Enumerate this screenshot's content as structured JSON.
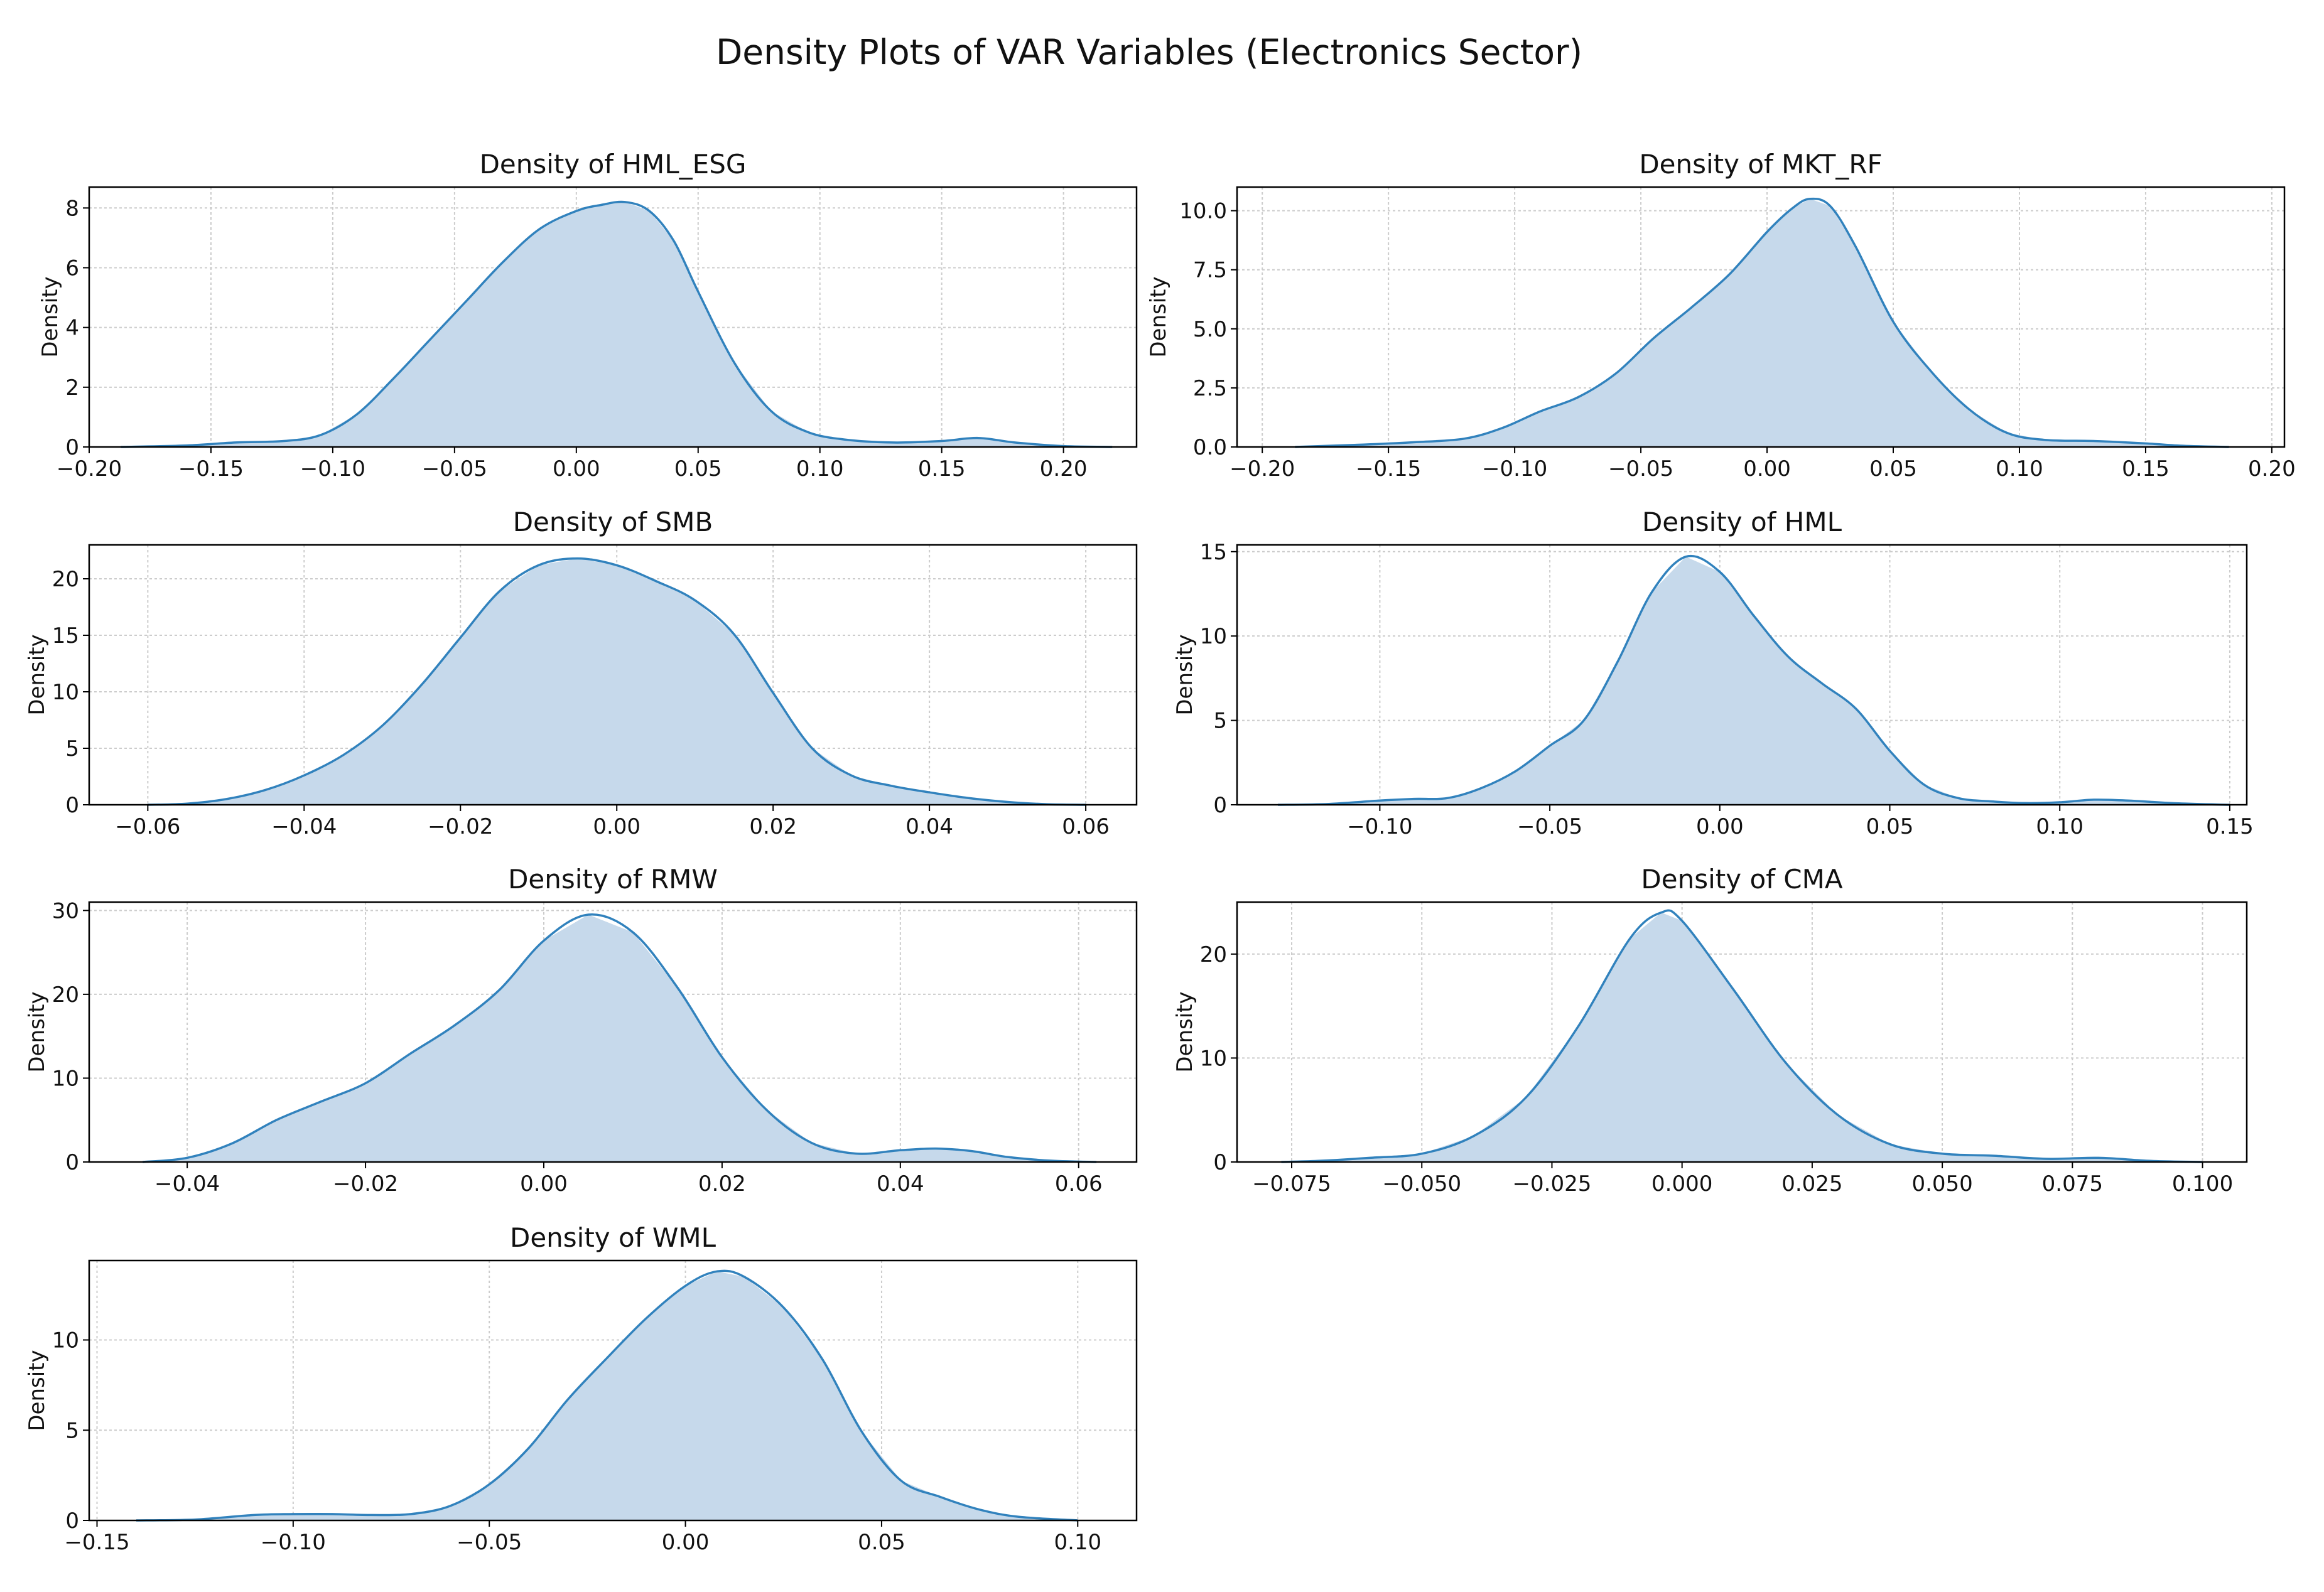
{
  "figure": {
    "title": "Density Plots of VAR Variables (Electronics Sector)"
  },
  "colors": {
    "line": "#3182bd",
    "fill": "#c6d9eb",
    "grid": "#cccccc",
    "axis": "#000000"
  },
  "chart_data": [
    {
      "type": "area",
      "title": "Density of HML_ESG",
      "xlabel": "",
      "ylabel": "Density",
      "xlim": [
        -0.2,
        0.23
      ],
      "ylim": [
        0,
        8.7
      ],
      "xticks": [
        -0.2,
        -0.15,
        -0.1,
        -0.05,
        0.0,
        0.05,
        0.1,
        0.15,
        0.2
      ],
      "xtick_labels": [
        "−0.20",
        "−0.15",
        "−0.10",
        "−0.05",
        "0.00",
        "0.05",
        "0.10",
        "0.15",
        "0.20"
      ],
      "yticks": [
        0,
        2,
        4,
        6,
        8
      ],
      "ytick_labels": [
        "0",
        "2",
        "4",
        "6",
        "8"
      ],
      "grid": true,
      "x": [
        -0.187,
        -0.16,
        -0.14,
        -0.12,
        -0.105,
        -0.09,
        -0.075,
        -0.06,
        -0.045,
        -0.03,
        -0.015,
        0.0,
        0.01,
        0.02,
        0.03,
        0.04,
        0.05,
        0.065,
        0.08,
        0.095,
        0.11,
        0.13,
        0.15,
        0.165,
        0.18,
        0.2,
        0.22
      ],
      "y": [
        0.0,
        0.05,
        0.15,
        0.2,
        0.4,
        1.1,
        2.3,
        3.6,
        4.9,
        6.2,
        7.3,
        7.9,
        8.1,
        8.2,
        7.9,
        6.9,
        5.2,
        2.8,
        1.2,
        0.5,
        0.25,
        0.15,
        0.2,
        0.3,
        0.15,
        0.03,
        0.0
      ]
    },
    {
      "type": "area",
      "title": "Density of MKT_RF",
      "xlabel": "",
      "ylabel": "Density",
      "xlim": [
        -0.21,
        0.205
      ],
      "ylim": [
        0,
        11.0
      ],
      "xticks": [
        -0.2,
        -0.15,
        -0.1,
        -0.05,
        0.0,
        0.05,
        0.1,
        0.15,
        0.2
      ],
      "xtick_labels": [
        "−0.20",
        "−0.15",
        "−0.10",
        "−0.05",
        "0.00",
        "0.05",
        "0.10",
        "0.15",
        "0.20"
      ],
      "yticks": [
        0,
        2.5,
        5,
        7.5,
        10
      ],
      "ytick_labels": [
        "0.0",
        "2.5",
        "5.0",
        "7.5",
        "10.0"
      ],
      "grid": true,
      "x": [
        -0.187,
        -0.16,
        -0.14,
        -0.12,
        -0.105,
        -0.09,
        -0.075,
        -0.06,
        -0.045,
        -0.03,
        -0.015,
        0.0,
        0.01,
        0.017,
        0.025,
        0.035,
        0.05,
        0.065,
        0.08,
        0.095,
        0.11,
        0.13,
        0.15,
        0.165,
        0.183
      ],
      "y": [
        0.0,
        0.1,
        0.2,
        0.35,
        0.8,
        1.5,
        2.1,
        3.1,
        4.6,
        5.9,
        7.3,
        9.1,
        10.1,
        10.5,
        10.2,
        8.5,
        5.3,
        3.2,
        1.6,
        0.6,
        0.3,
        0.25,
        0.15,
        0.05,
        0.0
      ]
    },
    {
      "type": "area",
      "title": "Density of SMB",
      "xlabel": "",
      "ylabel": "Density",
      "xlim": [
        -0.0675,
        0.0665
      ],
      "ylim": [
        0,
        23.0
      ],
      "xticks": [
        -0.06,
        -0.04,
        -0.02,
        0.0,
        0.02,
        0.04,
        0.06
      ],
      "xtick_labels": [
        "−0.06",
        "−0.04",
        "−0.02",
        "0.00",
        "0.02",
        "0.04",
        "0.06"
      ],
      "yticks": [
        0,
        5,
        10,
        15,
        20
      ],
      "ytick_labels": [
        "0",
        "5",
        "10",
        "15",
        "20"
      ],
      "grid": true,
      "x": [
        -0.06,
        -0.055,
        -0.05,
        -0.045,
        -0.04,
        -0.035,
        -0.03,
        -0.025,
        -0.02,
        -0.015,
        -0.01,
        -0.005,
        0.0,
        0.005,
        0.01,
        0.015,
        0.02,
        0.025,
        0.03,
        0.035,
        0.04,
        0.045,
        0.05,
        0.055,
        0.06
      ],
      "y": [
        0.0,
        0.1,
        0.5,
        1.3,
        2.6,
        4.4,
        7.0,
        10.6,
        14.8,
        18.9,
        21.2,
        21.8,
        21.2,
        19.8,
        18.1,
        15.1,
        9.9,
        5.0,
        2.6,
        1.7,
        1.1,
        0.6,
        0.25,
        0.05,
        0.0
      ]
    },
    {
      "type": "area",
      "title": "Density of HML",
      "xlabel": "",
      "ylabel": "Density",
      "xlim": [
        -0.142,
        0.155
      ],
      "ylim": [
        0,
        15.4
      ],
      "xticks": [
        -0.1,
        -0.05,
        0.0,
        0.05,
        0.1,
        0.15
      ],
      "xtick_labels": [
        "−0.10",
        "−0.05",
        "0.00",
        "0.05",
        "0.10",
        "0.15"
      ],
      "yticks": [
        0,
        5,
        10,
        15
      ],
      "ytick_labels": [
        "0",
        "5",
        "10",
        "15"
      ],
      "grid": true,
      "x": [
        -0.13,
        -0.115,
        -0.1,
        -0.09,
        -0.08,
        -0.07,
        -0.06,
        -0.05,
        -0.04,
        -0.03,
        -0.02,
        -0.01,
        0.0,
        0.01,
        0.02,
        0.03,
        0.04,
        0.05,
        0.06,
        0.07,
        0.08,
        0.09,
        0.1,
        0.11,
        0.12,
        0.135,
        0.15
      ],
      "y": [
        0.0,
        0.05,
        0.25,
        0.35,
        0.4,
        1.0,
        2.0,
        3.5,
        5.0,
        8.5,
        12.6,
        14.7,
        13.8,
        11.2,
        8.8,
        7.2,
        5.7,
        3.2,
        1.2,
        0.4,
        0.2,
        0.1,
        0.15,
        0.3,
        0.25,
        0.08,
        0.0
      ]
    },
    {
      "type": "area",
      "title": "Density of RMW",
      "xlabel": "",
      "ylabel": "Density",
      "xlim": [
        -0.051,
        0.0665
      ],
      "ylim": [
        0,
        31.0
      ],
      "xticks": [
        -0.04,
        -0.02,
        0.0,
        0.02,
        0.04,
        0.06
      ],
      "xtick_labels": [
        "−0.04",
        "−0.02",
        "0.00",
        "0.02",
        "0.04",
        "0.06"
      ],
      "yticks": [
        0,
        10,
        20,
        30
      ],
      "ytick_labels": [
        "0",
        "10",
        "20",
        "30"
      ],
      "grid": true,
      "x": [
        -0.045,
        -0.04,
        -0.035,
        -0.03,
        -0.025,
        -0.02,
        -0.015,
        -0.01,
        -0.005,
        0.0,
        0.005,
        0.01,
        0.015,
        0.02,
        0.025,
        0.03,
        0.035,
        0.04,
        0.044,
        0.048,
        0.052,
        0.057,
        0.062
      ],
      "y": [
        0.0,
        0.5,
        2.2,
        5.0,
        7.2,
        9.4,
        12.9,
        16.3,
        20.5,
        26.4,
        29.5,
        27.4,
        20.8,
        12.5,
        6.2,
        2.3,
        1.0,
        1.4,
        1.6,
        1.3,
        0.6,
        0.15,
        0.0
      ]
    },
    {
      "type": "area",
      "title": "Density of CMA",
      "xlabel": "",
      "ylabel": "Density",
      "xlim": [
        -0.0855,
        0.1085
      ],
      "ylim": [
        0,
        25.0
      ],
      "xticks": [
        -0.075,
        -0.05,
        -0.025,
        0.0,
        0.025,
        0.05,
        0.075,
        0.1
      ],
      "xtick_labels": [
        "−0.075",
        "−0.050",
        "−0.025",
        "0.000",
        "0.025",
        "0.050",
        "0.075",
        "0.100"
      ],
      "yticks": [
        0,
        10,
        20
      ],
      "ytick_labels": [
        "0",
        "10",
        "20"
      ],
      "grid": true,
      "x": [
        -0.077,
        -0.07,
        -0.06,
        -0.05,
        -0.04,
        -0.03,
        -0.02,
        -0.01,
        -0.004,
        0.0,
        0.01,
        0.02,
        0.03,
        0.04,
        0.05,
        0.06,
        0.07,
        0.08,
        0.09,
        0.1
      ],
      "y": [
        0.0,
        0.1,
        0.4,
        0.8,
        2.5,
        6.2,
        13.0,
        21.5,
        24.0,
        23.2,
        16.5,
        9.5,
        4.5,
        1.7,
        0.8,
        0.6,
        0.3,
        0.4,
        0.1,
        0.0
      ]
    },
    {
      "type": "area",
      "title": "Density of WML",
      "xlabel": "",
      "ylabel": "Density",
      "xlim": [
        -0.152,
        0.115
      ],
      "ylim": [
        0,
        14.4
      ],
      "xticks": [
        -0.15,
        -0.1,
        -0.05,
        0.0,
        0.05,
        0.1
      ],
      "xtick_labels": [
        "−0.15",
        "−0.10",
        "−0.05",
        "0.00",
        "0.05",
        "0.10"
      ],
      "yticks": [
        0,
        5,
        10
      ],
      "ytick_labels": [
        "0",
        "5",
        "10"
      ],
      "grid": true,
      "x": [
        -0.14,
        -0.125,
        -0.11,
        -0.1,
        -0.09,
        -0.08,
        -0.07,
        -0.06,
        -0.05,
        -0.04,
        -0.03,
        -0.02,
        -0.01,
        0.0,
        0.008,
        0.015,
        0.025,
        0.035,
        0.045,
        0.055,
        0.065,
        0.075,
        0.085,
        0.1
      ],
      "y": [
        0.0,
        0.05,
        0.3,
        0.35,
        0.35,
        0.3,
        0.35,
        0.8,
        2.0,
        4.0,
        6.7,
        9.0,
        11.2,
        13.0,
        13.8,
        13.5,
        11.8,
        8.9,
        4.9,
        2.2,
        1.3,
        0.6,
        0.2,
        0.0
      ]
    }
  ]
}
